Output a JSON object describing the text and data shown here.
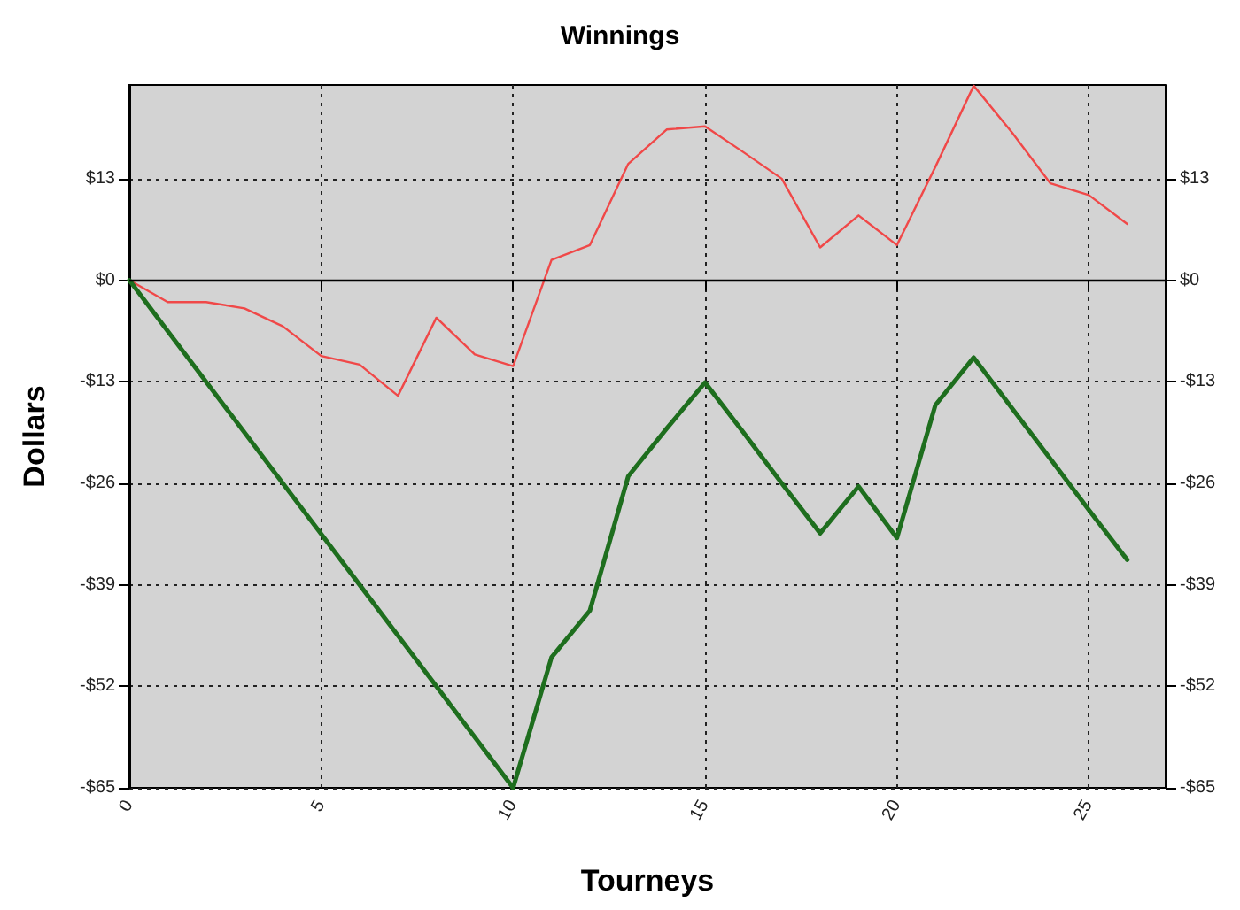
{
  "chart_data": {
    "type": "line",
    "title": "Winnings",
    "xlabel": "Tourneys",
    "ylabel": "Dollars",
    "x": [
      0,
      1,
      2,
      3,
      4,
      5,
      6,
      7,
      8,
      9,
      10,
      11,
      12,
      13,
      14,
      15,
      16,
      17,
      18,
      19,
      20,
      21,
      22,
      23,
      24,
      25,
      26
    ],
    "series": [
      {
        "color": "#f04848",
        "values": [
          0,
          -2.8,
          -2.8,
          -3.6,
          -5.9,
          -9.7,
          -10.8,
          -14.8,
          -4.8,
          -9.5,
          -11,
          2.6,
          4.5,
          14.9,
          19.3,
          19.7,
          16.4,
          13,
          4.2,
          8.3,
          4.5,
          14.5,
          24.9,
          18.9,
          12.4,
          10.9,
          7.2
        ]
      },
      {
        "color": "#1e6e1e",
        "values": [
          0,
          -6.5,
          -13,
          -19.5,
          -26,
          -32.5,
          -39,
          -45.5,
          -52,
          -58.5,
          -65,
          -48.3,
          -42.3,
          -25.1,
          -19,
          -13.1,
          -19.5,
          -26,
          -32.4,
          -26.4,
          -33,
          -16,
          -9.9,
          -16.4,
          -22.9,
          -29.4,
          -35.8
        ]
      }
    ],
    "xlim": [
      0,
      27
    ],
    "xticks": [
      0,
      5,
      10,
      15,
      20,
      25
    ],
    "ylim": [
      -65,
      25
    ],
    "yticks": [
      {
        "value": -65,
        "label": "-$65"
      },
      {
        "value": -52,
        "label": "-$52"
      },
      {
        "value": -39,
        "label": "-$39"
      },
      {
        "value": -26,
        "label": "-$26"
      },
      {
        "value": -13,
        "label": "-$13"
      },
      {
        "value": 0,
        "label": "$0"
      },
      {
        "value": 13,
        "label": "$13"
      }
    ],
    "y2lim": [
      -65,
      25
    ],
    "y2ticks": [
      {
        "value": -65,
        "label": "-$65"
      },
      {
        "value": -52,
        "label": "-$52"
      },
      {
        "value": -39,
        "label": "-$39"
      },
      {
        "value": -26,
        "label": "-$26"
      },
      {
        "value": -13,
        "label": "-$13"
      },
      {
        "value": 0,
        "label": "$0"
      },
      {
        "value": 13,
        "label": "$13"
      }
    ],
    "ref_lines": [
      {
        "axis": "y",
        "value": 0,
        "color": "#000000",
        "line_style": "solid"
      }
    ],
    "grid": true,
    "marker": "none",
    "line_style": "solid"
  }
}
